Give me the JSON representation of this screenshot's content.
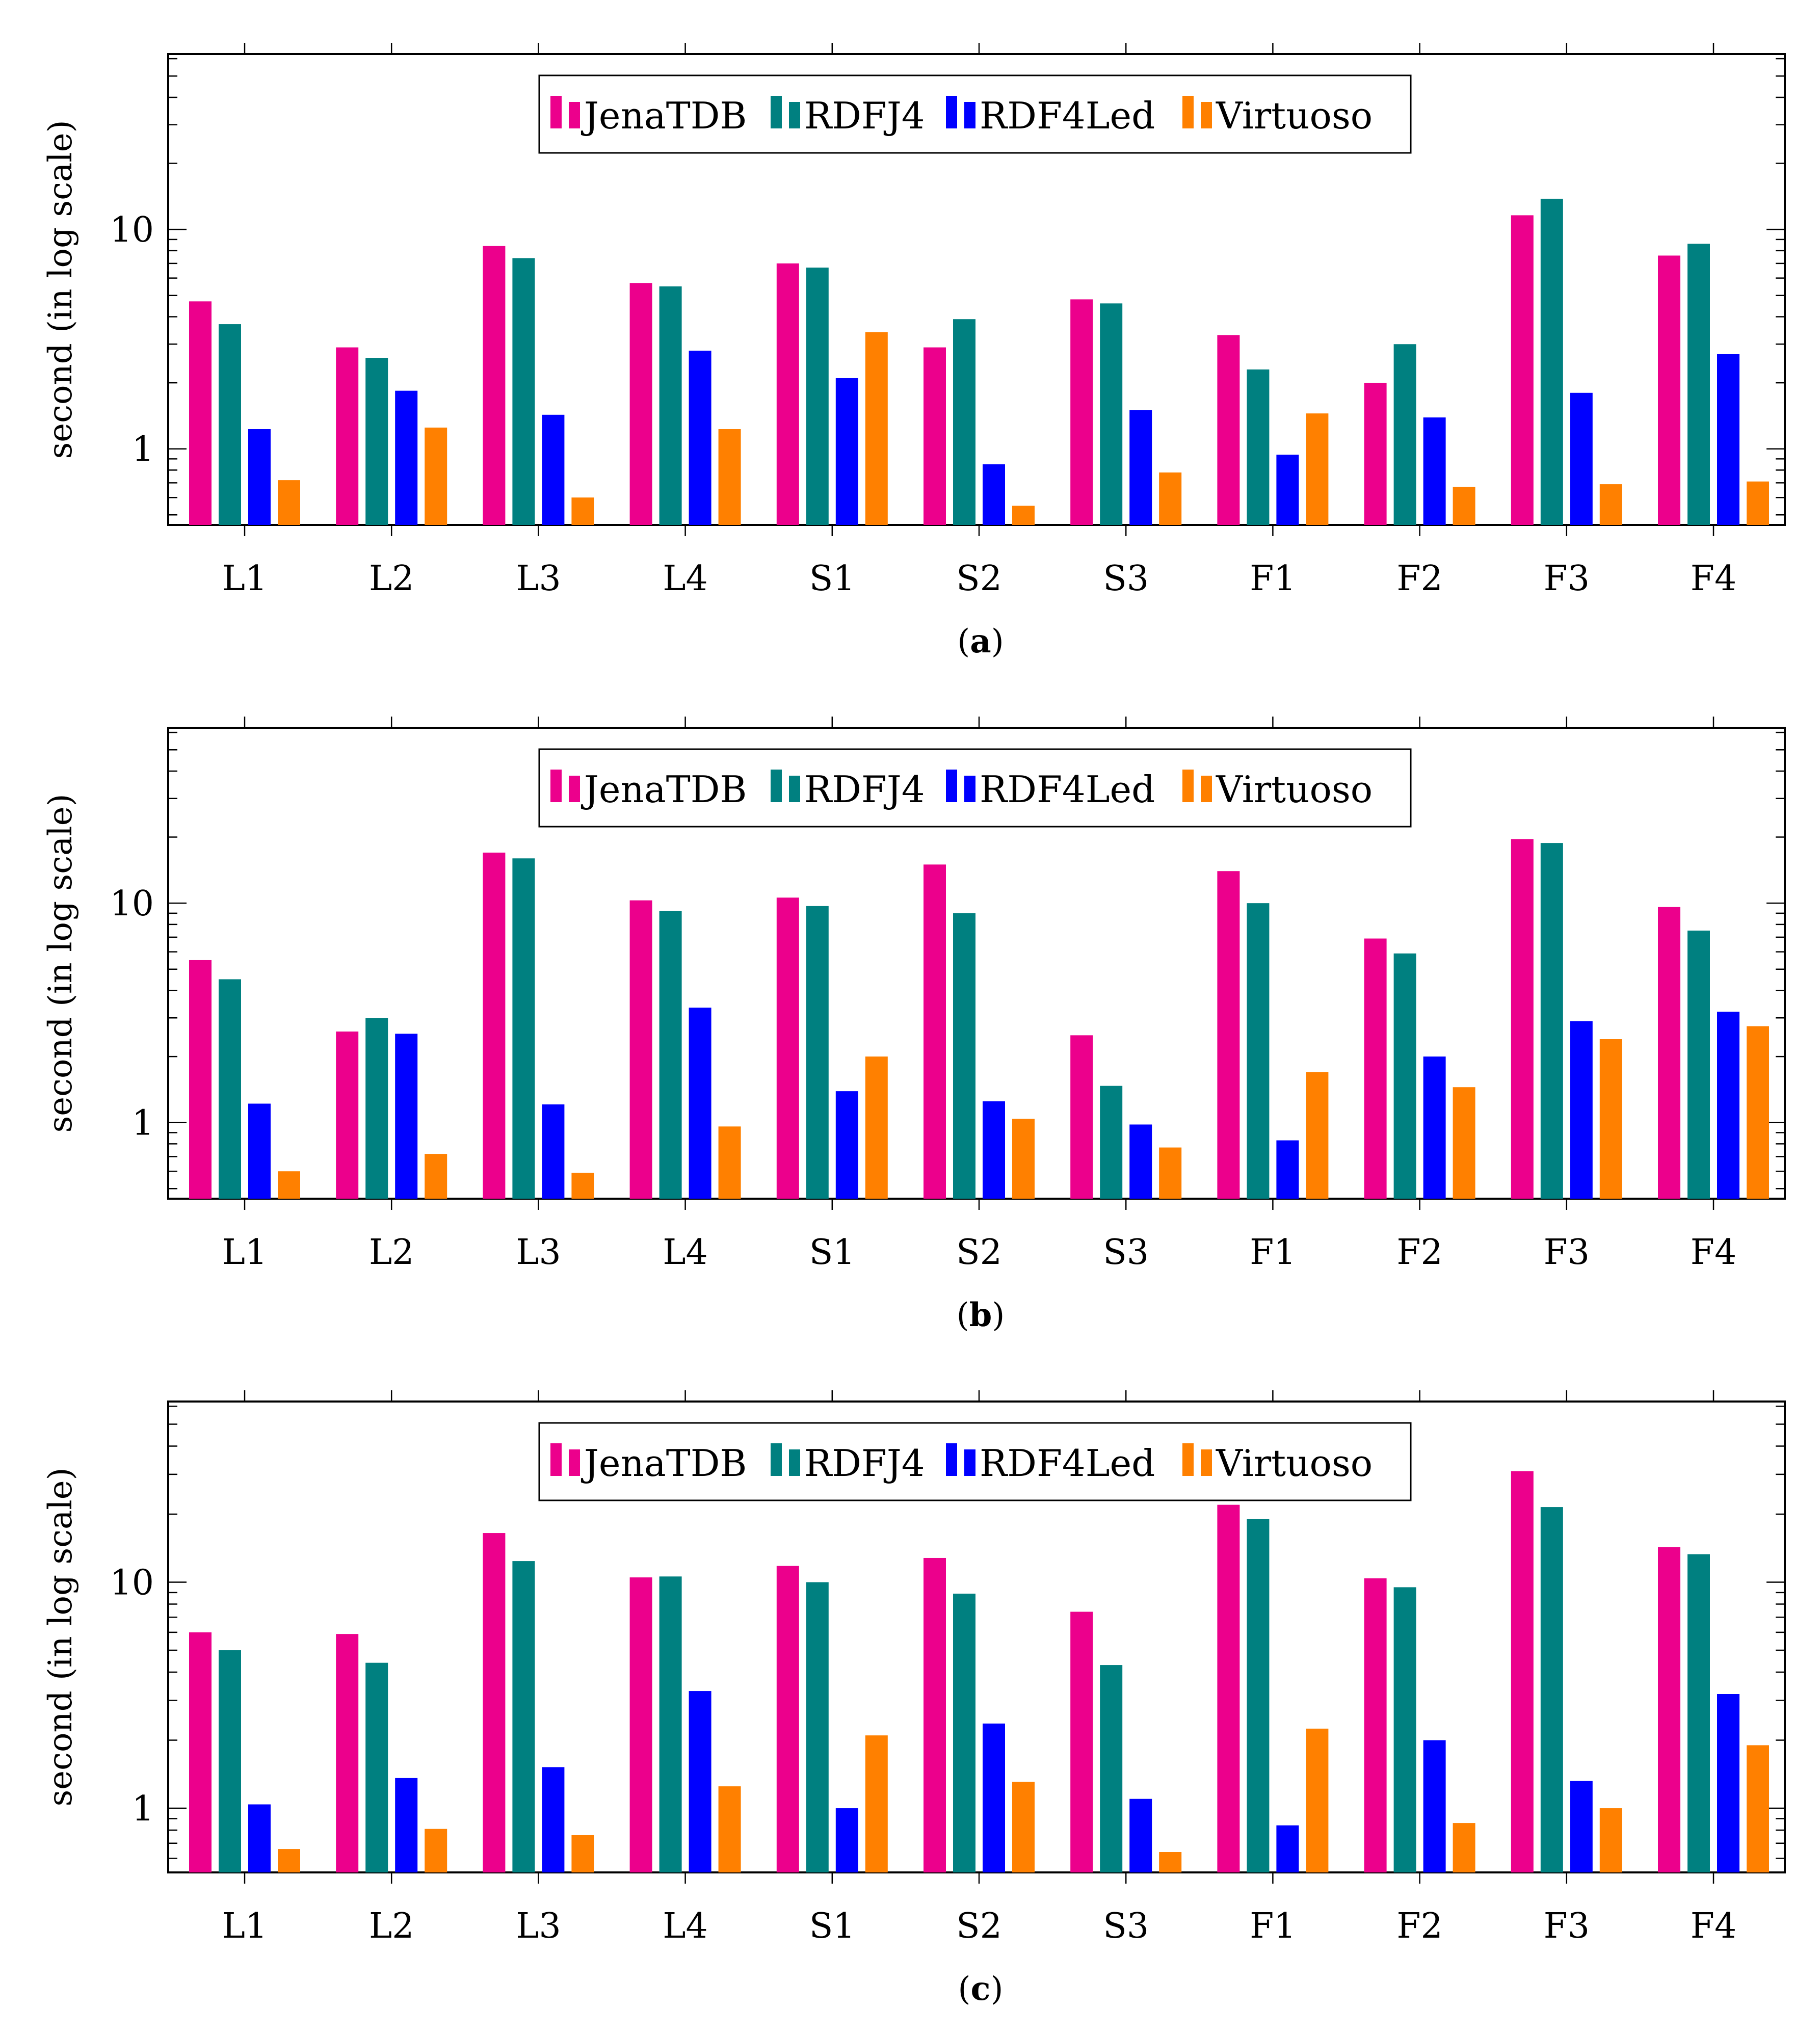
{
  "chart_data": [
    {
      "type": "bar",
      "caption": "(a)",
      "caption_letter": "a",
      "ylabel": "second (in log scale)",
      "yscale": "log",
      "ylim": [
        0.45,
        63
      ],
      "ytick_labels": [
        "1",
        "10"
      ],
      "legend_position": "top-center",
      "categories": [
        "L1",
        "L2",
        "L3",
        "L4",
        "S1",
        "S2",
        "S3",
        "F1",
        "F2",
        "F3",
        "F4"
      ],
      "series": [
        {
          "name": "JenaTDB",
          "color": "#ec008c",
          "values": [
            4.7,
            2.9,
            8.4,
            5.7,
            7.0,
            2.9,
            4.8,
            3.3,
            2.0,
            11.6,
            7.6
          ]
        },
        {
          "name": "RDFJ4",
          "color": "#008080",
          "values": [
            3.7,
            2.6,
            7.4,
            5.5,
            6.7,
            3.9,
            4.6,
            2.3,
            3.0,
            13.8,
            8.6
          ]
        },
        {
          "name": "RDF4Led",
          "color": "#0000ff",
          "values": [
            1.23,
            1.84,
            1.43,
            2.8,
            2.1,
            0.85,
            1.5,
            0.94,
            1.39,
            1.8,
            2.7
          ]
        },
        {
          "name": "Virtuoso",
          "color": "#ff8000",
          "values": [
            0.72,
            1.25,
            0.6,
            1.23,
            3.4,
            0.55,
            0.78,
            1.45,
            0.67,
            0.69,
            0.71
          ]
        }
      ]
    },
    {
      "type": "bar",
      "caption": "(b)",
      "caption_letter": "b",
      "ylabel": "second (in log scale)",
      "yscale": "log",
      "ylim": [
        0.45,
        63
      ],
      "ytick_labels": [
        "1",
        "10"
      ],
      "legend_position": "top-center",
      "categories": [
        "L1",
        "L2",
        "L3",
        "L4",
        "S1",
        "S2",
        "S3",
        "F1",
        "F2",
        "F3",
        "F4"
      ],
      "series": [
        {
          "name": "JenaTDB",
          "color": "#ec008c",
          "values": [
            5.5,
            2.6,
            17.0,
            10.3,
            10.6,
            15.0,
            2.5,
            14.0,
            6.9,
            19.6,
            9.6
          ]
        },
        {
          "name": "RDFJ4",
          "color": "#008080",
          "values": [
            4.5,
            3.0,
            16.0,
            9.2,
            9.7,
            9.0,
            1.47,
            10.0,
            5.9,
            18.8,
            7.5
          ]
        },
        {
          "name": "RDF4Led",
          "color": "#0000ff",
          "values": [
            1.22,
            2.54,
            1.21,
            3.34,
            1.39,
            1.25,
            0.98,
            0.83,
            2.0,
            2.9,
            3.2
          ]
        },
        {
          "name": "Virtuoso",
          "color": "#ff8000",
          "values": [
            0.6,
            0.72,
            0.59,
            0.96,
            2.0,
            1.04,
            0.77,
            1.7,
            1.45,
            2.4,
            2.75
          ]
        }
      ]
    },
    {
      "type": "bar",
      "caption": "(c)",
      "caption_letter": "c",
      "ylabel": "second (in log scale)",
      "yscale": "log",
      "ylim": [
        0.52,
        63
      ],
      "ytick_labels": [
        "1",
        "10"
      ],
      "legend_position": "top-center",
      "categories": [
        "L1",
        "L2",
        "L3",
        "L4",
        "S1",
        "S2",
        "S3",
        "F1",
        "F2",
        "F3",
        "F4"
      ],
      "series": [
        {
          "name": "JenaTDB",
          "color": "#ec008c",
          "values": [
            6.0,
            5.9,
            16.5,
            10.5,
            11.8,
            12.8,
            7.4,
            22.0,
            10.4,
            31.0,
            14.3
          ]
        },
        {
          "name": "RDFJ4",
          "color": "#008080",
          "values": [
            5.0,
            4.4,
            12.4,
            10.6,
            10.0,
            8.9,
            4.3,
            19.0,
            9.5,
            21.5,
            13.3
          ]
        },
        {
          "name": "RDF4Led",
          "color": "#0000ff",
          "values": [
            1.04,
            1.36,
            1.52,
            3.3,
            1.0,
            2.37,
            1.1,
            0.84,
            2.0,
            1.32,
            3.2
          ]
        },
        {
          "name": "Virtuoso",
          "color": "#ff8000",
          "values": [
            0.66,
            0.81,
            0.76,
            1.25,
            2.1,
            1.31,
            0.64,
            2.25,
            0.86,
            1.0,
            1.9
          ]
        }
      ]
    }
  ]
}
